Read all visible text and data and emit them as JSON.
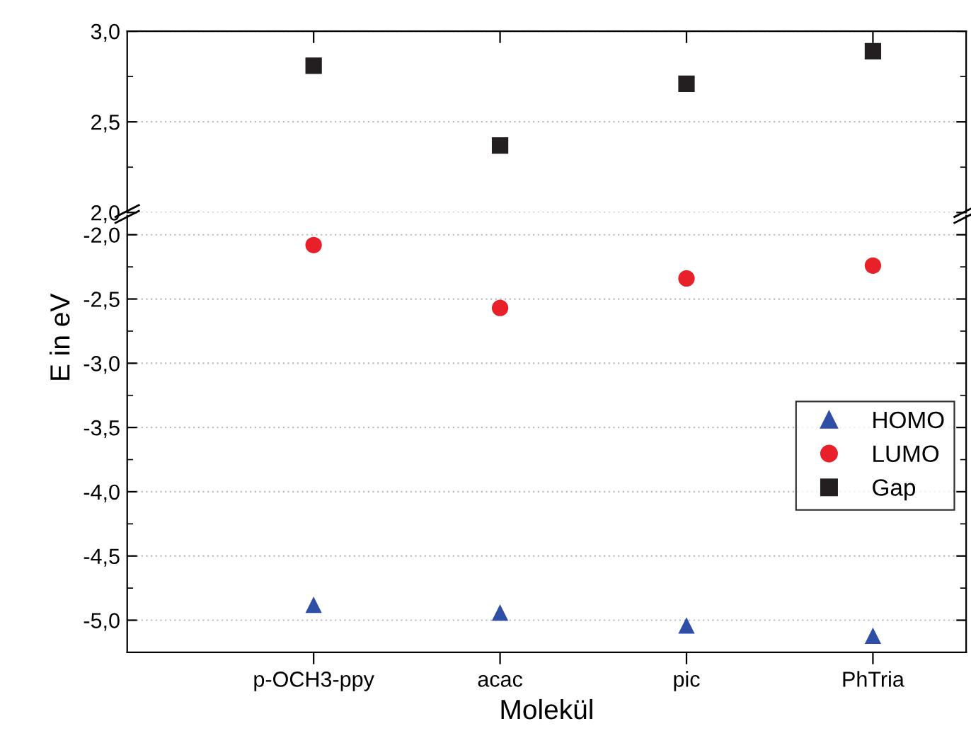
{
  "chart_data": [
    {
      "type": "scatter",
      "categories": [
        null,
        null,
        null,
        null
      ],
      "tick_labels": "y",
      "series": [
        {
          "name": "Gap",
          "color": "#231f20",
          "marker": "square",
          "values": [
            2.81,
            2.37,
            2.71,
            2.89
          ]
        }
      ],
      "ylim": [
        2.0,
        3.0
      ],
      "yticks": [
        {
          "value": 2.0,
          "label": "2,0"
        },
        {
          "value": 2.5,
          "label": "2,5"
        },
        {
          "value": 3.0,
          "label": "3,0"
        }
      ],
      "grid": "y"
    },
    {
      "type": "scatter",
      "categories": [
        "p-OCH3-ppy",
        "acac",
        "pic",
        "PhTria"
      ],
      "xlabel": "Molekül",
      "ylabel": "E in eV",
      "series": [
        {
          "name": "HOMO",
          "color": "#2f4fa6",
          "marker": "triangle",
          "values": [
            -4.88,
            -4.94,
            -5.04,
            -5.12
          ]
        },
        {
          "name": "LUMO",
          "color": "#e8202a",
          "marker": "circle",
          "values": [
            -2.08,
            -2.57,
            -2.34,
            -2.24
          ]
        }
      ],
      "ylim": [
        -5.25,
        -1.85
      ],
      "yticks": [
        {
          "value": -2.0,
          "label": "-2,0"
        },
        {
          "value": -2.5,
          "label": "-2,5"
        },
        {
          "value": -3.0,
          "label": "-3,0"
        },
        {
          "value": -3.5,
          "label": "-3,5"
        },
        {
          "value": -4.0,
          "label": "-4,0"
        },
        {
          "value": -4.5,
          "label": "-4,5"
        },
        {
          "value": -5.0,
          "label": "-5,0"
        }
      ],
      "grid": "y",
      "legend": "right"
    }
  ]
}
